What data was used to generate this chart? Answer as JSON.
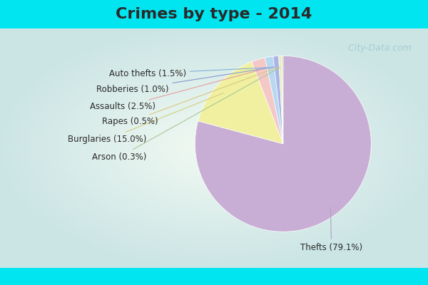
{
  "title": "Crimes by type - 2014",
  "slices": [
    {
      "label": "Thefts (79.1%)",
      "value": 79.1,
      "color": "#c8aed4"
    },
    {
      "label": "Burglaries (15.0%)",
      "value": 15.0,
      "color": "#f0f0a0"
    },
    {
      "label": "Assaults (2.5%)",
      "value": 2.5,
      "color": "#f5c8c8"
    },
    {
      "label": "Auto thefts (1.5%)",
      "value": 1.5,
      "color": "#b8d8f0"
    },
    {
      "label": "Robberies (1.0%)",
      "value": 1.0,
      "color": "#a8b4e8"
    },
    {
      "label": "Rapes (0.5%)",
      "value": 0.5,
      "color": "#f0e8b8"
    },
    {
      "label": "Arson (0.3%)",
      "value": 0.3,
      "color": "#d0e8c0"
    }
  ],
  "cyan_color": "#00e5f0",
  "bg_inner_color": "#e8f5e8",
  "title_fontsize": 16,
  "label_fontsize": 8.5,
  "watermark": "  City-Data.com",
  "watermark_color": "#a0c8cc",
  "line_colors": {
    "Thefts (79.1%)": "#b0a0c0",
    "Burglaries (15.0%)": "#d0d080",
    "Assaults (2.5%)": "#e0a0a0",
    "Auto thefts (1.5%)": "#80b0d8",
    "Robberies (1.0%)": "#8898d0",
    "Rapes (0.5%)": "#d8c880",
    "Arson (0.3%)": "#a8c898"
  }
}
